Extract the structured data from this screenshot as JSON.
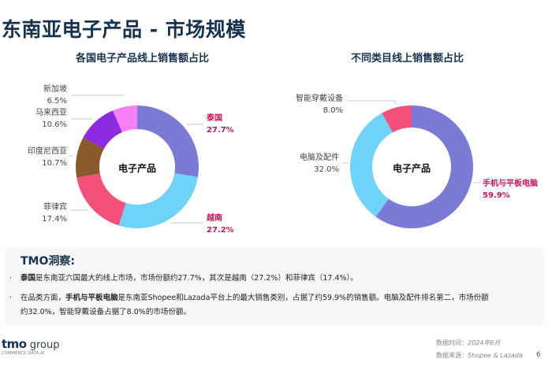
{
  "page": {
    "title": "东南亚电子产品 - 市场规模",
    "page_number": "6"
  },
  "colors": {
    "title": "#17324d",
    "highlight": "#c2185b",
    "purple_blue": "#7b7bd6",
    "light_blue": "#6fd2f8",
    "rose": "#f4507a",
    "brown": "#8a5a2b",
    "violet": "#8a2be2",
    "pink": "#f77ef5"
  },
  "charts": {
    "left": {
      "title": "各国电子产品线上销售额占比",
      "center": "电子产品",
      "labels": [
        {
          "name": "泰国",
          "value": "27.7%"
        },
        {
          "name": "越南",
          "value": "27.2%"
        },
        {
          "name": "菲律宾",
          "value": "17.4%"
        },
        {
          "name": "印度尼西亚",
          "value": "10.7%"
        },
        {
          "name": "马来西亚",
          "value": "10.6%"
        },
        {
          "name": "新加坡",
          "value": "6.5%"
        }
      ]
    },
    "right": {
      "title": "不同类目线上销售额占比",
      "center": "电子产品",
      "labels": [
        {
          "name": "手机与平板电脑",
          "value": "59.9%"
        },
        {
          "name": "电脑及配件",
          "value": "32.0%"
        },
        {
          "name": "智能穿戴设备",
          "value": "8.0%"
        }
      ]
    }
  },
  "insight": {
    "title": "TMO洞察:",
    "bullet_dot": "·",
    "b1_bold": "泰国",
    "b1_text": "是东南亚六国最大的线上市场，市场份额约27.7%，其次是越南（27.2%）和菲律宾（17.4%）。",
    "b2_pre": "在品类方面，",
    "b2_bold": "手机与平板电脑",
    "b2_text": "是东南亚Shopee和Lazada平台上的最大销售类别，占据了约59.9%的销售额。电脑及配件排名第二，市场份额",
    "b2_text2": "约32.0%，智能穿戴设备占据了8.0%的市场份额。"
  },
  "footer": {
    "logo_main": "tmo",
    "logo_group": " group",
    "tagline": "COMMERCE.DATA.AI",
    "date_label": "数据时间：",
    "date_value": "2024年6月",
    "source_label": "数据来源：",
    "source_value": "Shopee & Lazada"
  },
  "chart_data": [
    {
      "type": "pie",
      "title": "各国电子产品线上销售额占比",
      "center_label": "电子产品",
      "categories": [
        "泰国",
        "越南",
        "菲律宾",
        "印度尼西亚",
        "马来西亚",
        "新加坡"
      ],
      "values": [
        27.7,
        27.2,
        17.4,
        10.7,
        10.6,
        6.5
      ],
      "colors": [
        "#7b7bd6",
        "#6fd2f8",
        "#f4507a",
        "#8a5a2b",
        "#8a2be2",
        "#f77ef5"
      ],
      "donut": true
    },
    {
      "type": "pie",
      "title": "不同类目线上销售额占比",
      "center_label": "电子产品",
      "categories": [
        "手机与平板电脑",
        "电脑及配件",
        "智能穿戴设备"
      ],
      "values": [
        59.9,
        32.0,
        8.0
      ],
      "colors": [
        "#7b7bd6",
        "#6fd2f8",
        "#f4507a"
      ],
      "donut": true
    }
  ]
}
